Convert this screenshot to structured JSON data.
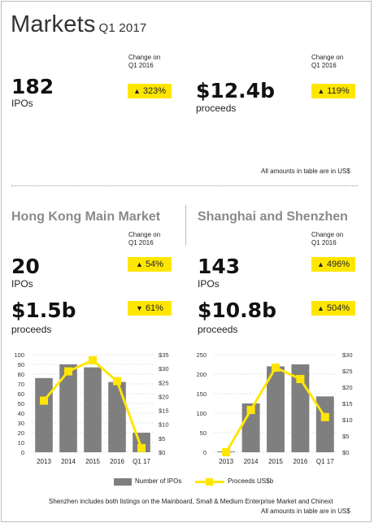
{
  "header": {
    "title": "Markets",
    "quarter": "Q1 2017"
  },
  "change_label_line1": "Change on",
  "change_label_line2": "Q1 2016",
  "top": {
    "ipos": {
      "value": "182",
      "label": "IPOs",
      "change": "323%",
      "direction": "up"
    },
    "proceeds": {
      "value": "$12.4b",
      "label": "proceeds",
      "change": "119%",
      "direction": "up"
    },
    "note": "All amounts in table are in US$"
  },
  "hk": {
    "title": "Hong Kong Main Market",
    "ipos": {
      "value": "20",
      "label": "IPOs",
      "change": "54%",
      "direction": "up"
    },
    "proceeds": {
      "value": "$1.5b",
      "label": "proceeds",
      "change": "61%",
      "direction": "down"
    }
  },
  "sh": {
    "title": "Shanghai and Shenzhen",
    "ipos": {
      "value": "143",
      "label": "IPOs",
      "change": "496%",
      "direction": "up"
    },
    "proceeds": {
      "value": "$10.8b",
      "label": "proceeds",
      "change": "504%",
      "direction": "up"
    }
  },
  "chart_data": [
    {
      "type": "bar",
      "categories": [
        "2013",
        "2014",
        "2015",
        "2016",
        "Q1 17"
      ],
      "series": [
        {
          "name": "Number of IPOs",
          "kind": "bar",
          "axis": "left",
          "values": [
            76,
            90,
            87,
            72,
            20
          ]
        },
        {
          "name": "Proceeds US$b",
          "kind": "line",
          "axis": "right",
          "values": [
            18.5,
            29,
            33,
            25.5,
            1.5
          ]
        }
      ],
      "left_ylim": [
        0,
        100
      ],
      "left_ticks": [
        "0",
        "10",
        "20",
        "30",
        "40",
        "50",
        "60",
        "70",
        "80",
        "90",
        "100"
      ],
      "right_ylim": [
        0,
        35
      ],
      "right_ticks": [
        "$0",
        "$5",
        "$10",
        "$15",
        "$20",
        "$25",
        "$30",
        "$35"
      ],
      "grid": true
    },
    {
      "type": "bar",
      "categories": [
        "2013",
        "2014",
        "2015",
        "2016",
        "Q1 17"
      ],
      "series": [
        {
          "name": "Number of IPOs",
          "kind": "bar",
          "axis": "left",
          "values": [
            2,
            125,
            220,
            225,
            143
          ]
        },
        {
          "name": "Proceeds US$b",
          "kind": "line",
          "axis": "right",
          "values": [
            0,
            13,
            26,
            22.5,
            10.8
          ]
        }
      ],
      "left_ylim": [
        0,
        250
      ],
      "left_ticks": [
        "0",
        "50",
        "100",
        "150",
        "200",
        "250"
      ],
      "right_ylim": [
        0,
        30
      ],
      "right_ticks": [
        "$0",
        "$5",
        "$10",
        "$15",
        "$20",
        "$25",
        "$30"
      ],
      "grid": true
    }
  ],
  "legend": {
    "bars": "Number of IPOs",
    "line": "Proceeds US$b"
  },
  "footnote1": "Shenzhen includes both listings on the Mainboard, Small & Medium Enterprise Market and Chinext",
  "footnote2": "All amounts in table are in US$",
  "colors": {
    "bar": "#7f7f7f",
    "line": "#ffe600",
    "badge": "#ffe600"
  }
}
